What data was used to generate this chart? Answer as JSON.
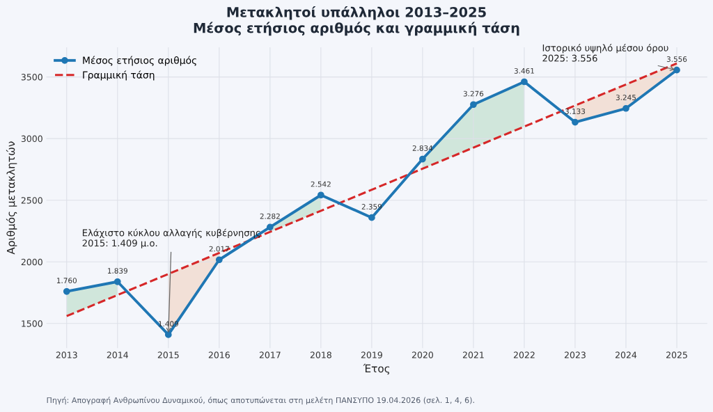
{
  "chart_data": {
    "type": "line",
    "title": "Μετακλητοί υπάλληλοι 2013–2025\nΜέσος ετήσιος αριθμός και γραμμική τάση",
    "xlabel": "Έτος",
    "ylabel": "Αριθμός μετακλητών",
    "x": [
      2013,
      2014,
      2015,
      2016,
      2017,
      2018,
      2019,
      2020,
      2021,
      2022,
      2023,
      2024,
      2025
    ],
    "series": [
      {
        "name": "Μέσος ετήσιος αριθμός",
        "color": "#1f77b4",
        "marker": "circle",
        "line_style": "solid",
        "values": [
          1760,
          1839,
          1409,
          2017,
          2282,
          2542,
          2359,
          2834,
          3276,
          3461,
          3133,
          3245,
          3556
        ],
        "value_labels": [
          "1.760",
          "1.839",
          "1.409",
          "2.017",
          "2.282",
          "2.542",
          "2.359",
          "2.834",
          "3.276",
          "3.461",
          "3.133",
          "3.245",
          "3.556"
        ]
      },
      {
        "name": "Γραμμική τάση",
        "type": "line",
        "color": "#d62728",
        "marker": "none",
        "line_style": "dashed",
        "x": [
          2013,
          2025
        ],
        "values": [
          1560,
          3610
        ]
      }
    ],
    "xlim": [
      2012.6,
      2025.6
    ],
    "xticks": [
      2013,
      2014,
      2015,
      2016,
      2017,
      2018,
      2019,
      2020,
      2021,
      2022,
      2023,
      2024,
      2025
    ],
    "ylim": [
      1300,
      3740
    ],
    "yticks": [
      1500,
      2000,
      2500,
      3000,
      3500
    ],
    "grid": true,
    "legend": "top left",
    "annotations": [
      {
        "text": "Ελάχιστο κύκλου αλλαγής κυβέρνησης\n2015: 1.409 μ.ο.",
        "x": 2015,
        "y": 1409
      },
      {
        "text": "Ιστορικό υψηλό μέσου όρου\n2025: 3.556",
        "x": 2025,
        "y": 3556
      },
      "Πηγή: Απογραφή Ανθρωπίνου Δυναμικού, όπως αποτυπώνεται στη μελέτη ΠΑΝΣΥΠΟ 19.04.2026 (σελ. 1, 4, 6)."
    ]
  }
}
